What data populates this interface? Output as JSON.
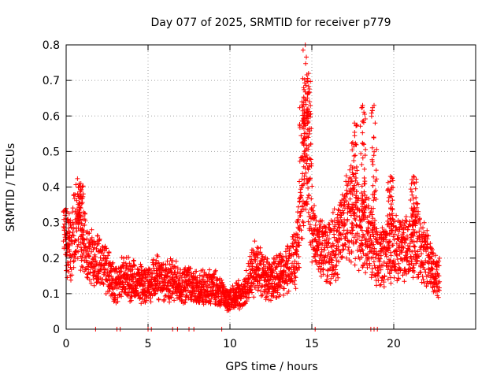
{
  "chart_data": {
    "type": "scatter",
    "title": "Day 077 of 2025, SRMTID for receiver p779",
    "xlabel": "GPS time / hours",
    "ylabel": "SRMTID / TECUs",
    "xlim": [
      0,
      25
    ],
    "ylim": [
      0,
      0.8
    ],
    "x_ticks": [
      0,
      5,
      10,
      15,
      20
    ],
    "y_ticks": [
      0,
      0.1,
      0.2,
      0.3,
      0.4,
      0.5,
      0.6,
      0.7,
      0.8
    ],
    "x_tick_labels": [
      "0",
      "5",
      "10",
      "15",
      "20"
    ],
    "y_tick_labels": [
      "0",
      "0.1",
      "0.2",
      "0.3",
      "0.4",
      "0.5",
      "0.6",
      "0.7",
      "0.8"
    ],
    "grid": true,
    "marker": "+",
    "color": "#ff0000",
    "series": [
      {
        "name": "SRMTID",
        "profile_x": [
          0.0,
          0.3,
          0.6,
          0.9,
          1.2,
          1.5,
          2.0,
          2.5,
          3.0,
          3.5,
          4.0,
          4.5,
          5.0,
          5.5,
          6.0,
          6.5,
          7.0,
          7.5,
          8.0,
          8.5,
          9.0,
          9.5,
          10.0,
          10.5,
          11.0,
          11.5,
          12.0,
          12.5,
          13.0,
          13.5,
          14.0,
          14.3,
          14.6,
          14.9,
          15.2,
          15.6,
          16.0,
          16.5,
          17.0,
          17.4,
          17.8,
          18.2,
          18.6,
          19.0,
          19.5,
          20.0,
          20.5,
          21.0,
          21.5,
          22.0,
          22.5,
          22.8
        ],
        "profile_y": [
          0.2,
          0.24,
          0.3,
          0.28,
          0.22,
          0.2,
          0.19,
          0.17,
          0.12,
          0.15,
          0.14,
          0.13,
          0.12,
          0.15,
          0.13,
          0.14,
          0.12,
          0.13,
          0.11,
          0.12,
          0.12,
          0.1,
          0.08,
          0.1,
          0.12,
          0.17,
          0.16,
          0.13,
          0.15,
          0.17,
          0.2,
          0.3,
          0.5,
          0.38,
          0.24,
          0.22,
          0.22,
          0.24,
          0.3,
          0.33,
          0.3,
          0.28,
          0.26,
          0.2,
          0.22,
          0.24,
          0.22,
          0.24,
          0.26,
          0.2,
          0.16,
          0.14
        ],
        "spikes": [
          {
            "x": 0.9,
            "y": 0.41
          },
          {
            "x": 14.6,
            "y": 0.8
          },
          {
            "x": 14.8,
            "y": 0.72
          },
          {
            "x": 14.4,
            "y": 0.64
          },
          {
            "x": 17.6,
            "y": 0.58
          },
          {
            "x": 18.1,
            "y": 0.63
          },
          {
            "x": 18.8,
            "y": 0.63
          },
          {
            "x": 19.8,
            "y": 0.43
          },
          {
            "x": 21.2,
            "y": 0.43
          },
          {
            "x": 0.0,
            "y": 0.34
          }
        ],
        "zero_points_x": [
          1.8,
          3.1,
          3.3,
          5.0,
          5.2,
          6.5,
          6.8,
          7.5,
          7.8,
          9.5,
          15.2,
          18.6,
          18.8,
          19.0
        ]
      }
    ]
  }
}
